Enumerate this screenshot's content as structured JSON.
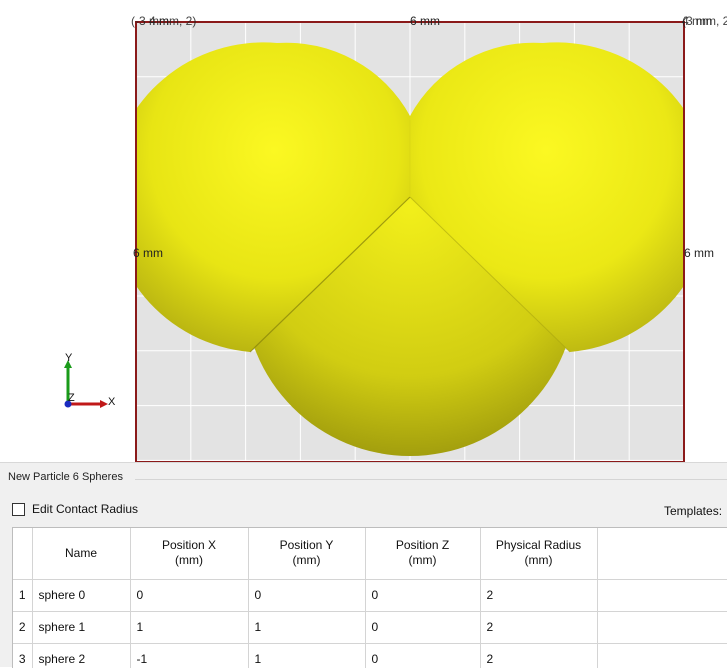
{
  "viewport": {
    "labels": {
      "top_left": "4 mm, 2)",
      "top_left_overlap": "(-3 mm",
      "top_center": "6 mm",
      "top_right": "(3 mm, 2",
      "top_right_overlap": "4 mm",
      "mid_left": "6 mm",
      "mid_right": "6 mm"
    },
    "colors": {
      "sphere_light": "#f5f219",
      "sphere_dark": "#9a950f",
      "box_border": "#8b1a1a",
      "grid_bg": "#e3e3e3",
      "grid_line": "#ffffff"
    },
    "triad": {
      "x": "X",
      "y": "Y",
      "z": "Z"
    }
  },
  "panel": {
    "group_title": "New Particle 6 Spheres",
    "edit_contact_radius": {
      "label": "Edit Contact Radius",
      "checked": false
    },
    "templates_label": "Templates:",
    "table": {
      "headers": {
        "name": "Name",
        "pos_x": "Position X\n(mm)",
        "pos_y": "Position Y\n(mm)",
        "pos_z": "Position Z\n(mm)",
        "radius": "Physical Radius\n(mm)"
      },
      "rows": [
        {
          "num": "1",
          "name": "sphere 0",
          "x": "0",
          "y": "0",
          "z": "0",
          "r": "2"
        },
        {
          "num": "2",
          "name": "sphere 1",
          "x": "1",
          "y": "1",
          "z": "0",
          "r": "2"
        },
        {
          "num": "3",
          "name": "sphere 2",
          "x": "-1",
          "y": "1",
          "z": "0",
          "r": "2"
        }
      ]
    }
  }
}
